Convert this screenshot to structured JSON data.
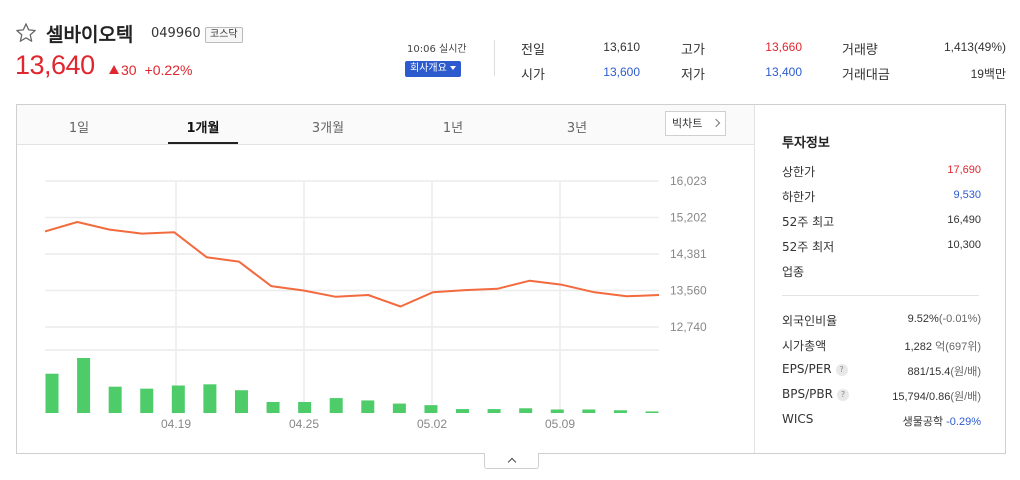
{
  "header": {
    "stock_name": "셀바이오텍",
    "stock_code": "049960",
    "market_badge": "코스닥",
    "price": "13,640",
    "change_amount": "30",
    "change_percent": "+0.22%",
    "time_label": "10:06 실시간",
    "company_button": "회사개요"
  },
  "quote": {
    "prev_close_label": "전일",
    "prev_close": "13,610",
    "open_label": "시가",
    "open": "13,600",
    "high_label": "고가",
    "high": "13,660",
    "low_label": "저가",
    "low": "13,400",
    "volume_label": "거래량",
    "volume": "1,413(49%)",
    "amount_label": "거래대금",
    "amount": "19백만"
  },
  "tabs": [
    {
      "label": "1일"
    },
    {
      "label": "1개월"
    },
    {
      "label": "3개월"
    },
    {
      "label": "1년"
    },
    {
      "label": "3년"
    }
  ],
  "active_tab": "1개월",
  "big_chart_button": "빅차트",
  "chart_data": {
    "type": "line",
    "price_series": [
      14890,
      15100,
      14930,
      14840,
      14870,
      14310,
      14210,
      13660,
      13560,
      13420,
      13460,
      13200,
      13520,
      13570,
      13600,
      13780,
      13690,
      13520,
      13430,
      13460
    ],
    "volume_series": [
      100,
      140,
      67,
      62,
      70,
      73,
      58,
      28,
      28,
      38,
      32,
      24,
      20,
      10,
      10,
      12,
      9,
      9,
      7,
      4
    ],
    "y_ticks": [
      "16,023",
      "15,202",
      "14,381",
      "13,560",
      "12,740"
    ],
    "x_ticks": [
      "04.19",
      "04.25",
      "05.02",
      "05.09"
    ],
    "ylim": [
      12740,
      16023
    ],
    "line_color": "#f26a3d",
    "bar_color": "#4ecc6a",
    "grid": true
  },
  "invest_info": {
    "title": "투자정보",
    "upper_limit_label": "상한가",
    "upper_limit": "17,690",
    "lower_limit_label": "하한가",
    "lower_limit": "9,530",
    "high52_label": "52주 최고",
    "high52": "16,490",
    "low52_label": "52주 최저",
    "low52": "10,300",
    "industry_label": "업종",
    "foreign_ratio_label": "외국인비율",
    "foreign_ratio": "9.52%",
    "foreign_ratio_change": "(-0.01%)",
    "market_cap_label": "시가총액",
    "market_cap": "1,282",
    "market_cap_unit": "억(697위)",
    "eps_per_label": "EPS/PER",
    "eps_per": "881/15.4",
    "eps_per_unit": "(원/배)",
    "bps_pbr_label": "BPS/PBR",
    "bps_pbr": "15,794/0.86",
    "bps_pbr_unit": "(원/배)",
    "wics_label": "WICS",
    "wics": "생물공학",
    "wics_change": "-0.29%",
    "help_mark": "?"
  },
  "colors": {
    "up": "#e0262f",
    "down": "#2d5bcd",
    "accent": "#2d5bcd"
  }
}
